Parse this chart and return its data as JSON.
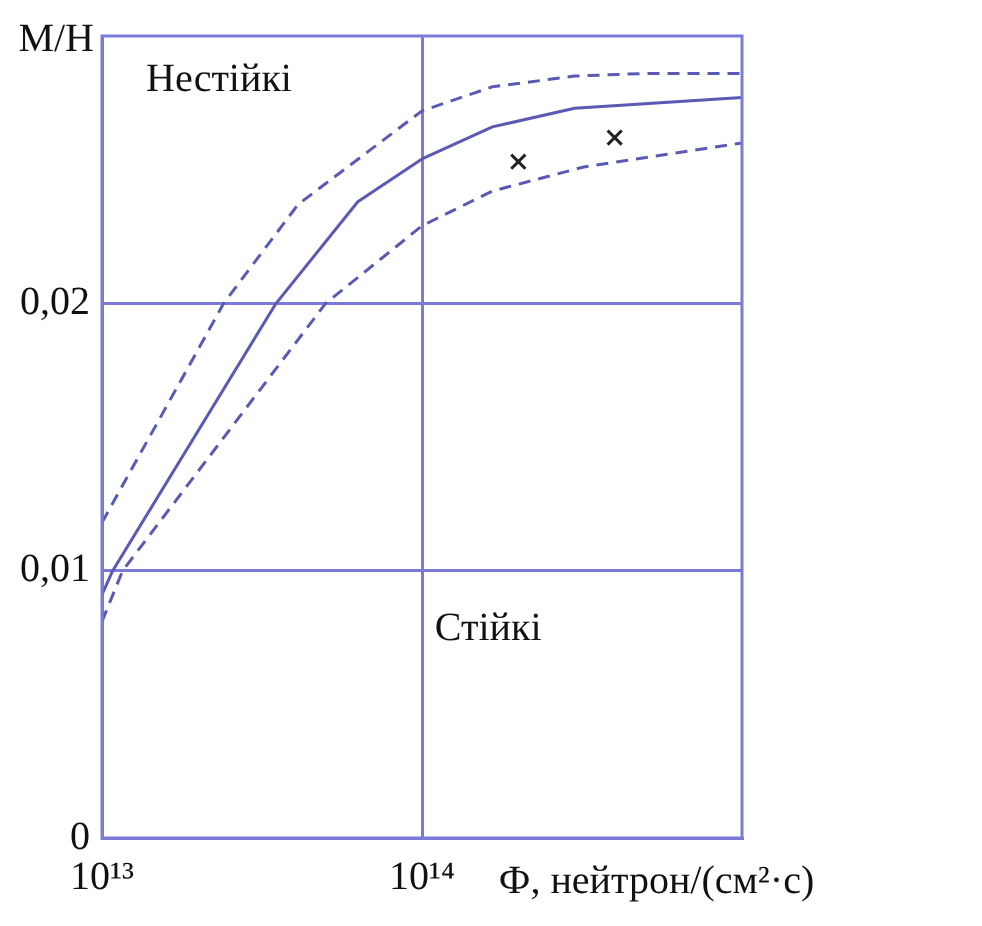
{
  "chart_data": {
    "type": "line",
    "xlabel": "Ф, нейтрон/(см²·с)",
    "ylabel": "М/Н",
    "log": "x",
    "xlim": [
      10000000000000.0,
      1000000000000000.0
    ],
    "xticks": [
      {
        "value": 10000000000000.0,
        "label": "10¹³"
      },
      {
        "value": 100000000000000.0,
        "label": "10¹⁴"
      }
    ],
    "ylim": [
      0,
      0.03
    ],
    "yticks": [
      {
        "value": 0,
        "label": "0"
      },
      {
        "value": 0.01,
        "label": "0,01"
      },
      {
        "value": 0.02,
        "label": "0,02"
      }
    ],
    "grid": true,
    "legend": false,
    "marker": "none",
    "annotations": [
      "Нестійкі",
      "Стійкі"
    ],
    "series": [
      {
        "color": "#5a5ab4",
        "line_style": "dashed",
        "x": [
          10000000000000.0,
          24000000000000.0,
          41000000000000.0,
          100000000000000.0,
          166000000000000.0,
          300000000000000.0,
          500000000000000.0,
          1000000000000000.0
        ],
        "values": [
          0.0118,
          0.02,
          0.0237,
          0.0272,
          0.0281,
          0.0285,
          0.0286,
          0.0286
        ]
      },
      {
        "color": "#5a5ab4",
        "line_style": "solid",
        "x": [
          10000000000000.0,
          10800000000000.0,
          35000000000000.0,
          63000000000000.0,
          100000000000000.0,
          166000000000000.0,
          300000000000000.0,
          1000000000000000.0
        ],
        "values": [
          0.0091,
          0.01,
          0.02,
          0.0238,
          0.0254,
          0.0266,
          0.0273,
          0.0277
        ]
      },
      {
        "color": "#5a5ab4",
        "line_style": "dashed",
        "x": [
          10000000000000.0,
          11600000000000.0,
          50000000000000.0,
          100000000000000.0,
          166000000000000.0,
          320000000000000.0,
          1000000000000000.0
        ],
        "values": [
          0.0081,
          0.01,
          0.02,
          0.0229,
          0.0242,
          0.0251,
          0.026
        ]
      },
      {
        "type": "scatter",
        "color": "#222222",
        "marker": "cross",
        "x": [
          200000000000000.0,
          400000000000000.0
        ],
        "values": [
          0.0253,
          0.0262
        ]
      }
    ]
  }
}
